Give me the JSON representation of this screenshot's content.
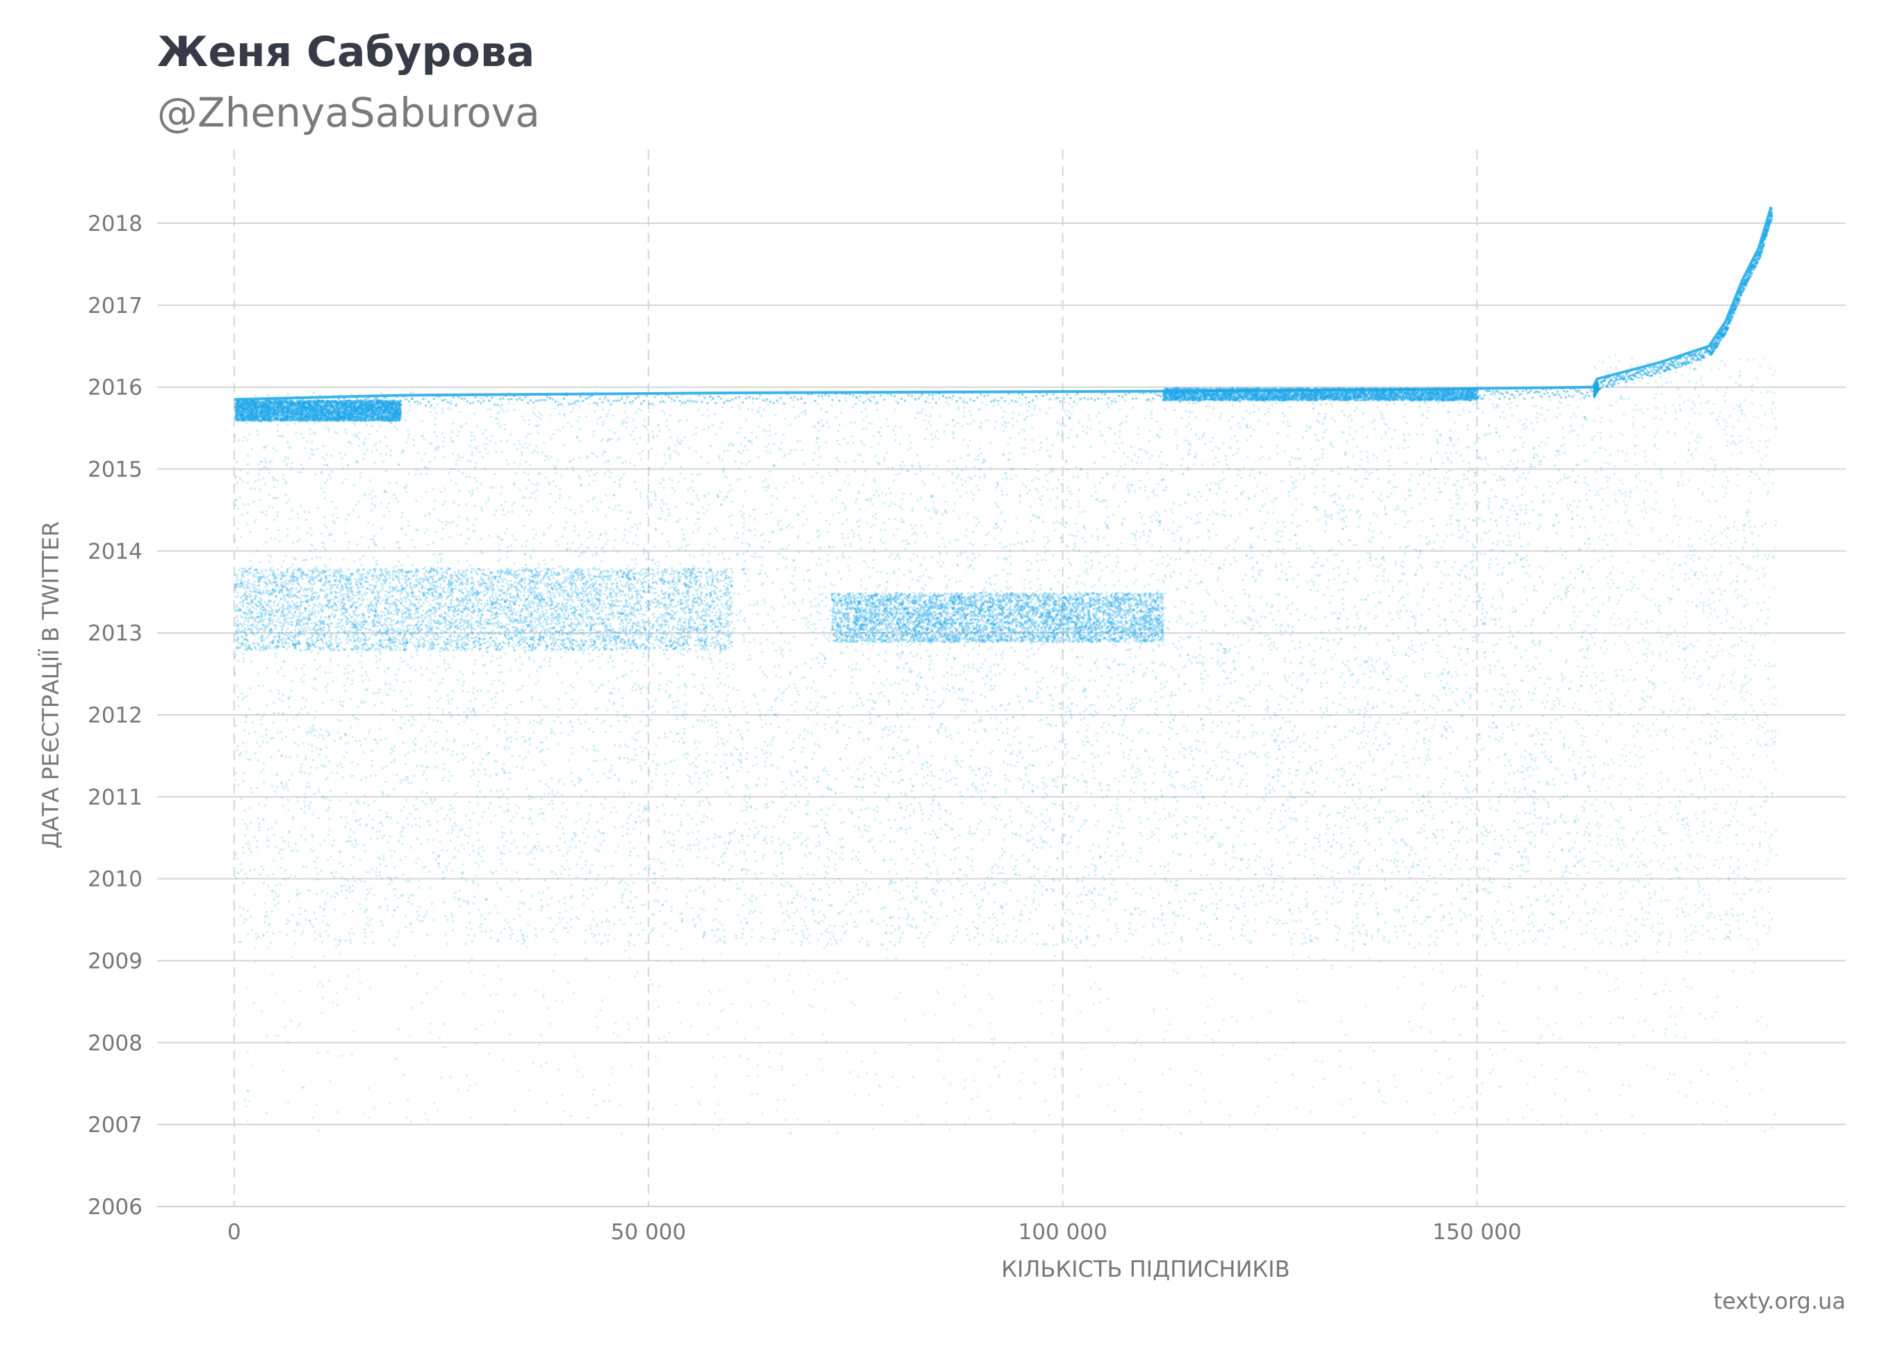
{
  "chart_data": {
    "type": "scatter",
    "title": "Женя Сабурова",
    "subtitle": "@ZhenyaSaburova",
    "xlabel": "КІЛЬКІСТЬ ПІДПИСНИКІВ",
    "ylabel": "ДАТА РЕЄСТРАЦІЇ В TWITTER",
    "xlim": [
      -9300,
      194500
    ],
    "ylim": [
      2006,
      2018.9
    ],
    "x_ticks": [
      {
        "value": 0,
        "label": "0"
      },
      {
        "value": 50000,
        "label": "50 000"
      },
      {
        "value": 100000,
        "label": "100 000"
      },
      {
        "value": 150000,
        "label": "150 000"
      }
    ],
    "y_ticks": [
      {
        "value": 2006,
        "label": "2006"
      },
      {
        "value": 2007,
        "label": "2007"
      },
      {
        "value": 2008,
        "label": "2008"
      },
      {
        "value": 2009,
        "label": "2009"
      },
      {
        "value": 2010,
        "label": "2010"
      },
      {
        "value": 2011,
        "label": "2011"
      },
      {
        "value": 2012,
        "label": "2012"
      },
      {
        "value": 2013,
        "label": "2013"
      },
      {
        "value": 2014,
        "label": "2014"
      },
      {
        "value": 2015,
        "label": "2015"
      },
      {
        "value": 2016,
        "label": "2016"
      },
      {
        "value": 2017,
        "label": "2017"
      },
      {
        "value": 2018,
        "label": "2018"
      }
    ],
    "grid": {
      "y": "solid",
      "x": "dashed"
    },
    "point_color": "#1aa7e8",
    "frontier": [
      {
        "x": 0,
        "y": 2015.85
      },
      {
        "x": 20000,
        "y": 2015.9
      },
      {
        "x": 60000,
        "y": 2015.93
      },
      {
        "x": 110000,
        "y": 2015.95
      },
      {
        "x": 140000,
        "y": 2015.97
      },
      {
        "x": 164000,
        "y": 2016.0
      },
      {
        "x": 164500,
        "y": 2016.1
      },
      {
        "x": 172000,
        "y": 2016.3
      },
      {
        "x": 178000,
        "y": 2016.5
      },
      {
        "x": 180000,
        "y": 2016.8
      },
      {
        "x": 182000,
        "y": 2017.3
      },
      {
        "x": 184000,
        "y": 2017.7
      },
      {
        "x": 185500,
        "y": 2018.2
      }
    ],
    "density_regions": [
      {
        "x": [
          0,
          164000
        ],
        "y": [
          2009.2,
          2015.95
        ],
        "density": "medium"
      },
      {
        "x": [
          0,
          60000
        ],
        "y": [
          2012.8,
          2013.8
        ],
        "density": "high"
      },
      {
        "x": [
          72000,
          112000
        ],
        "y": [
          2012.9,
          2013.5
        ],
        "density": "high"
      },
      {
        "x": [
          0,
          20000
        ],
        "y": [
          2015.6,
          2015.85
        ],
        "density": "high"
      },
      {
        "x": [
          112000,
          150000
        ],
        "y": [
          2015.85,
          2016.0
        ],
        "density": "high"
      },
      {
        "x": [
          164000,
          186000
        ],
        "y": [
          2009.2,
          2016.4
        ],
        "density": "low"
      },
      {
        "x": [
          0,
          186000
        ],
        "y": [
          2006.9,
          2009.2
        ],
        "density": "very-low"
      }
    ]
  },
  "credit": "texty.org.ua"
}
